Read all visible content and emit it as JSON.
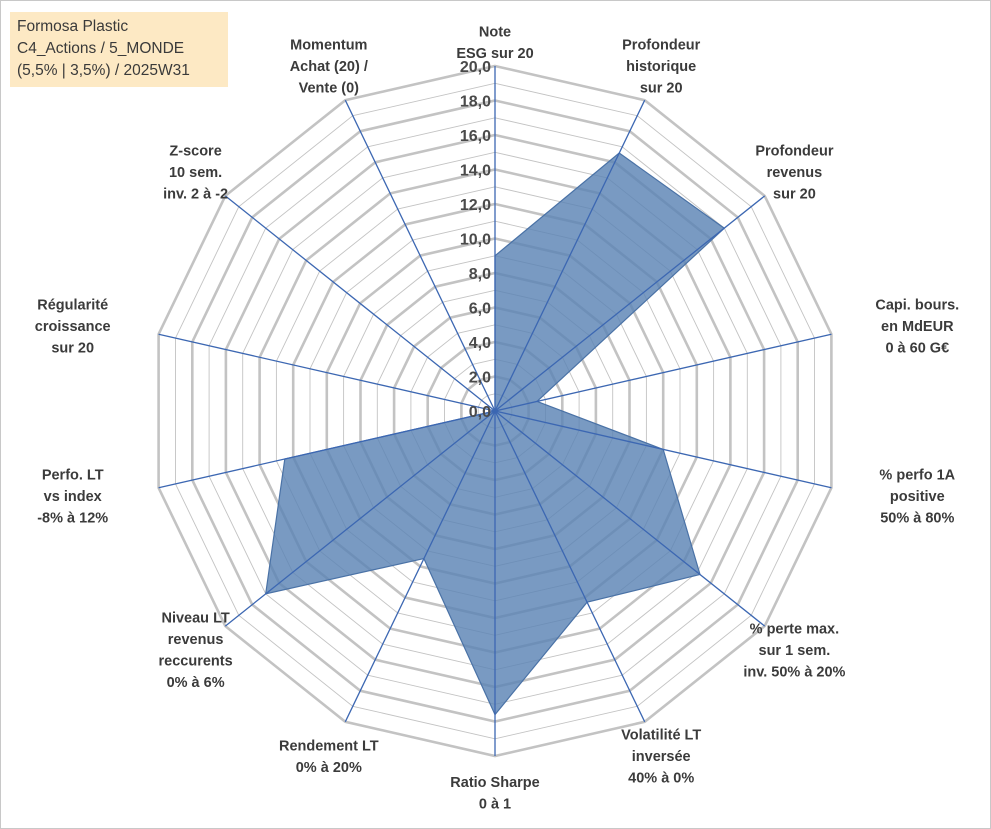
{
  "info_box": {
    "line1": "Formosa Plastic",
    "line2": "C4_Actions / 5_MONDE",
    "line3": "(5,5% | 3,5%) / 2025W31"
  },
  "colors": {
    "fill": "#5b84b4",
    "fill_stroke": "#4a72a6",
    "grid": "#c3c3c3",
    "spoke": "#3c67b2",
    "info_bg": "#fde9c4"
  },
  "chart_data": {
    "type": "radar",
    "r_range": [
      0,
      20
    ],
    "r_step": 1,
    "tick_labels": [
      "0,0",
      "2,0",
      "4,0",
      "6,0",
      "8,0",
      "10,0",
      "12,0",
      "14,0",
      "16,0",
      "18,0",
      "20,0"
    ],
    "grid": true,
    "axes": [
      {
        "label": [
          "Note",
          "ESG sur 20"
        ],
        "value": 9.0
      },
      {
        "label": [
          "Profondeur",
          "historique",
          "sur 20"
        ],
        "value": 16.6
      },
      {
        "label": [
          "Profondeur",
          "revenus",
          "sur 20"
        ],
        "value": 17.0
      },
      {
        "label": [
          "Capi. bours.",
          "en MdEUR",
          "0 à 60 G€"
        ],
        "value": 2.5
      },
      {
        "label": [
          "% perfo 1A",
          "positive",
          "50% à 80%"
        ],
        "value": 10.0
      },
      {
        "label": [
          "% perte max.",
          "sur 1 sem.",
          "inv. 50% à 20%"
        ],
        "value": 15.2
      },
      {
        "label": [
          "Volatilité LT",
          "inversée",
          "40% à 0%"
        ],
        "value": 12.3
      },
      {
        "label": [
          "Ratio Sharpe",
          "0 à 1"
        ],
        "value": 17.6
      },
      {
        "label": [
          "Rendement LT",
          "0% à 20%"
        ],
        "value": 9.5
      },
      {
        "label": [
          "Niveau LT",
          "revenus",
          "reccurents",
          "0% à 6%"
        ],
        "value": 17.0
      },
      {
        "label": [
          "Perfo. LT",
          "vs index",
          "-8% à 12%"
        ],
        "value": 12.5
      },
      {
        "label": [
          "Régularité",
          "croissance",
          "sur 20"
        ],
        "value": 0.0
      },
      {
        "label": [
          "Z-score",
          "10 sem.",
          "inv. 2 à -2"
        ],
        "value": 0.0
      },
      {
        "label": [
          "Momentum",
          "Achat (20) /",
          "Vente (0)"
        ],
        "value": 0.0
      }
    ]
  }
}
